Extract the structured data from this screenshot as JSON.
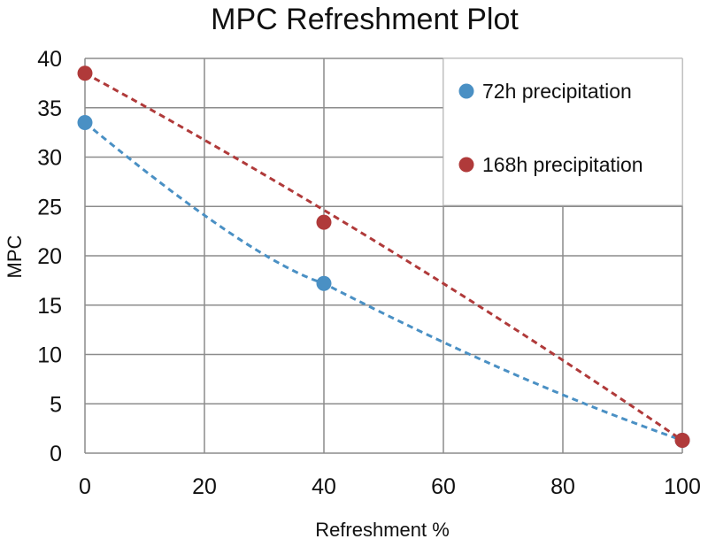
{
  "chart_data": {
    "type": "scatter",
    "title": "MPC Refreshment Plot",
    "xlabel": "Refreshment %",
    "ylabel": "MPC",
    "xlim": [
      0,
      100
    ],
    "ylim": [
      0,
      40
    ],
    "x_ticks": [
      0,
      20,
      40,
      60,
      80,
      100
    ],
    "y_ticks": [
      0,
      5,
      10,
      15,
      20,
      25,
      30,
      35,
      40
    ],
    "grid": true,
    "legend_position": "top-right",
    "series": [
      {
        "name": "72h precipitation",
        "color": "#4a90c4",
        "points": [
          {
            "x": 0,
            "y": 33.5
          },
          {
            "x": 40,
            "y": 17.2
          },
          {
            "x": 100,
            "y": 1.3
          }
        ],
        "trendline": "dashed"
      },
      {
        "name": "168h precipitation",
        "color": "#b03a3a",
        "points": [
          {
            "x": 0,
            "y": 38.5
          },
          {
            "x": 40,
            "y": 23.4
          },
          {
            "x": 100,
            "y": 1.3
          }
        ],
        "trendline": "dashed"
      }
    ]
  }
}
